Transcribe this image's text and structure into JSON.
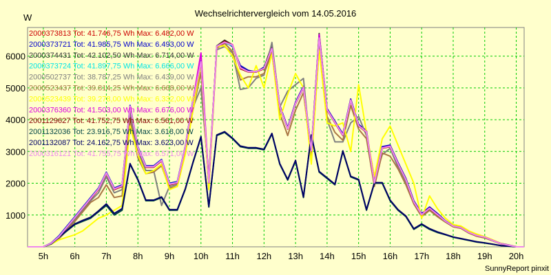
{
  "chart_data": {
    "type": "line",
    "title": "Wechselrichtervergleich vom 14.05.2016",
    "ylabel": "W",
    "credit": "SunnyReport pinxit",
    "xlim": [
      4.5,
      20.25
    ],
    "ylim": [
      0,
      6900
    ],
    "x_ticks": [
      {
        "value": 5,
        "label": "5h"
      },
      {
        "value": 6,
        "label": "6h"
      },
      {
        "value": 7,
        "label": "7h"
      },
      {
        "value": 8,
        "label": "8h"
      },
      {
        "value": 9,
        "label": "9h"
      },
      {
        "value": 10,
        "label": "10h"
      },
      {
        "value": 11,
        "label": "11h"
      },
      {
        "value": 12,
        "label": "12h"
      },
      {
        "value": 13,
        "label": "13h"
      },
      {
        "value": 14,
        "label": "14h"
      },
      {
        "value": 15,
        "label": "15h"
      },
      {
        "value": 16,
        "label": "16h"
      },
      {
        "value": 17,
        "label": "17h"
      },
      {
        "value": 18,
        "label": "18h"
      },
      {
        "value": 19,
        "label": "19h"
      },
      {
        "value": 20,
        "label": "20h"
      }
    ],
    "y_ticks": [
      {
        "value": 1000,
        "label": "1000"
      },
      {
        "value": 2000,
        "label": "2000"
      },
      {
        "value": 3000,
        "label": "3000"
      },
      {
        "value": 4000,
        "label": "4000"
      },
      {
        "value": 5000,
        "label": "5000"
      },
      {
        "value": 6000,
        "label": "6000"
      }
    ],
    "grid": true,
    "legend_position": "top-left",
    "x": [
      4.5,
      4.75,
      5.0,
      5.25,
      5.5,
      5.75,
      6.0,
      6.25,
      6.5,
      6.75,
      7.0,
      7.25,
      7.5,
      7.75,
      8.0,
      8.25,
      8.5,
      8.75,
      9.0,
      9.25,
      9.5,
      9.75,
      10.0,
      10.25,
      10.5,
      10.75,
      11.0,
      11.25,
      11.5,
      11.75,
      12.0,
      12.25,
      12.5,
      12.75,
      13.0,
      13.25,
      13.5,
      13.75,
      14.0,
      14.25,
      14.5,
      14.75,
      15.0,
      15.25,
      15.5,
      15.75,
      16.0,
      16.25,
      16.5,
      16.75,
      17.0,
      17.25,
      17.5,
      17.75,
      18.0,
      18.25,
      18.5,
      18.75,
      19.0,
      19.25,
      19.5,
      19.75,
      20.0,
      20.25
    ],
    "series": [
      {
        "name": "2000373813 Tot: 41.746,75 Wh Max: 6.482,00 W",
        "color": "#cc0000",
        "values": [
          0,
          0,
          0,
          100,
          300,
          600,
          900,
          1200,
          1500,
          1800,
          2300,
          1800,
          1900,
          4400,
          3100,
          2500,
          2500,
          2700,
          1950,
          2000,
          3100,
          4600,
          5800,
          2000,
          6300,
          6400,
          6350,
          5600,
          5500,
          5500,
          5600,
          6200,
          4400,
          3700,
          4500,
          5000,
          3000,
          6600,
          4300,
          3900,
          3500,
          4600,
          3800,
          3600,
          2000,
          3100,
          3150,
          2600,
          2100,
          1400,
          1000,
          1200,
          1000,
          800,
          650,
          600,
          450,
          350,
          300,
          200,
          100,
          50,
          0,
          0
        ]
      },
      {
        "name": "2000373721 Tot: 41.985,75 Wh Max: 6.493,00 W",
        "color": "#0000cc",
        "values": [
          0,
          0,
          0,
          120,
          350,
          650,
          950,
          1250,
          1550,
          1850,
          2350,
          1850,
          1950,
          4450,
          3150,
          2550,
          2550,
          2750,
          2000,
          2050,
          3150,
          4650,
          5850,
          2050,
          6300,
          6450,
          6300,
          5700,
          5550,
          5500,
          5650,
          6250,
          4450,
          3750,
          4550,
          5050,
          3050,
          6650,
          4350,
          3950,
          3550,
          4650,
          3850,
          3650,
          2050,
          3150,
          3200,
          2650,
          2150,
          1450,
          1050,
          1250,
          1050,
          820,
          660,
          610,
          460,
          360,
          310,
          210,
          110,
          60,
          0,
          0
        ]
      },
      {
        "name": "2000374431 Tot: 42.102,50 Wh Max: 6.714,00 W",
        "color": "#333333",
        "values": [
          0,
          0,
          0,
          110,
          320,
          620,
          920,
          1220,
          1520,
          1820,
          2320,
          1820,
          1920,
          4420,
          3120,
          2520,
          2520,
          2720,
          1970,
          2020,
          3120,
          4620,
          5820,
          2020,
          6320,
          6500,
          6350,
          5650,
          5520,
          5520,
          5620,
          6350,
          4420,
          3720,
          4520,
          5020,
          3020,
          6710,
          4320,
          3920,
          3520,
          4620,
          3820,
          3620,
          2020,
          3120,
          3170,
          2620,
          2120,
          1420,
          1020,
          1220,
          1020,
          810,
          655,
          605,
          455,
          355,
          305,
          205,
          105,
          55,
          0,
          0
        ]
      },
      {
        "name": "2000373724 Tot: 41.897,75 Wh Max: 6.666,00 W",
        "color": "#00e5e5",
        "values": [
          0,
          0,
          0,
          115,
          330,
          630,
          930,
          1230,
          1530,
          1830,
          2330,
          1830,
          1930,
          4430,
          3130,
          2530,
          2530,
          2730,
          1980,
          2030,
          3130,
          4630,
          5830,
          2030,
          6310,
          6420,
          6330,
          5620,
          5510,
          5510,
          5610,
          6220,
          4410,
          3710,
          4510,
          5010,
          3010,
          6660,
          4310,
          3910,
          3510,
          4610,
          3810,
          3610,
          2010,
          3110,
          3160,
          2610,
          2110,
          1410,
          1010,
          1210,
          1010,
          805,
          652,
          602,
          452,
          352,
          302,
          202,
          102,
          52,
          0,
          0
        ]
      },
      {
        "name": "2000502737 Tot: 38.787,25 Wh Max: 6.439,00 W",
        "color": "#7f7f7f",
        "values": [
          0,
          0,
          0,
          100,
          280,
          560,
          860,
          1150,
          1450,
          1700,
          2200,
          1700,
          1800,
          4200,
          3000,
          2400,
          2400,
          1300,
          1900,
          1950,
          3000,
          4400,
          5000,
          2200,
          6200,
          6300,
          6100,
          4950,
          5000,
          5300,
          5400,
          6430,
          4400,
          4900,
          5100,
          5300,
          2800,
          6400,
          4000,
          3300,
          3300,
          3900,
          4100,
          3500,
          2100,
          2900,
          3100,
          2500,
          2000,
          1400,
          950,
          1150,
          950,
          780,
          630,
          580,
          430,
          330,
          280,
          190,
          95,
          45,
          0,
          0
        ]
      },
      {
        "name": "2000523437 Tot: 39.814,25 Wh Max: 6.668,00 W",
        "color": "#aa7744",
        "values": [
          0,
          0,
          0,
          90,
          260,
          520,
          800,
          1100,
          1400,
          1550,
          1950,
          1550,
          1600,
          4000,
          2800,
          2300,
          2350,
          2550,
          1850,
          1900,
          2950,
          4300,
          5500,
          1900,
          6250,
          6400,
          6150,
          5250,
          5350,
          5350,
          5450,
          6100,
          4200,
          3500,
          4300,
          4850,
          2850,
          6600,
          4100,
          3600,
          3350,
          4450,
          3700,
          3400,
          1900,
          2950,
          2850,
          2450,
          1950,
          1350,
          950,
          1150,
          950,
          780,
          630,
          580,
          430,
          330,
          280,
          190,
          95,
          45,
          0,
          0
        ]
      },
      {
        "name": "2000523439 Tot: 39.278,00 Wh Max: 6.332,00 W",
        "color": "#ffff00",
        "values": [
          0,
          0,
          0,
          80,
          220,
          300,
          380,
          500,
          700,
          900,
          1000,
          1150,
          1300,
          3800,
          2900,
          2300,
          2400,
          2600,
          1800,
          1900,
          2900,
          4300,
          5800,
          1800,
          6300,
          6330,
          6000,
          5400,
          5000,
          5700,
          5000,
          6100,
          4000,
          4800,
          5450,
          5000,
          2600,
          6200,
          3900,
          3800,
          3900,
          3000,
          5100,
          3600,
          2200,
          3400,
          3800,
          3200,
          2600,
          2000,
          900,
          1600,
          1200,
          900,
          700,
          650,
          500,
          400,
          320,
          220,
          110,
          55,
          0,
          0
        ]
      },
      {
        "name": "2000376360 Tot: 41.503,00 Wh Max: 6.676,00 W",
        "color": "#dd00dd",
        "values": [
          0,
          0,
          0,
          112,
          325,
          625,
          925,
          1225,
          1525,
          1825,
          2325,
          1825,
          1925,
          4425,
          3125,
          2525,
          2525,
          2725,
          1975,
          2025,
          3125,
          4625,
          6100,
          2025,
          6305,
          6430,
          6360,
          5640,
          5510,
          5510,
          5610,
          6240,
          4420,
          3720,
          4520,
          5020,
          3020,
          6676,
          4320,
          3920,
          3520,
          4620,
          3820,
          3620,
          2020,
          3120,
          3170,
          2620,
          2120,
          1420,
          1020,
          1220,
          1020,
          808,
          653,
          603,
          453,
          353,
          303,
          203,
          103,
          53,
          0,
          0
        ]
      },
      {
        "name": "2001129627 Tot: 41.752,75 Wh Max: 6.561,00 W",
        "color": "#880000",
        "values": [
          0,
          0,
          0,
          105,
          310,
          610,
          910,
          1210,
          1510,
          1810,
          2310,
          1810,
          1910,
          4410,
          3110,
          2510,
          2510,
          2710,
          1960,
          2010,
          3110,
          4610,
          5810,
          2010,
          6300,
          6470,
          6340,
          5610,
          5505,
          5505,
          5605,
          6210,
          4405,
          3705,
          4505,
          5005,
          3005,
          6561,
          4305,
          3905,
          3505,
          4605,
          3805,
          3605,
          2005,
          3105,
          3155,
          2605,
          2105,
          1405,
          1005,
          1205,
          1005,
          803,
          651,
          601,
          451,
          351,
          301,
          201,
          101,
          51,
          0,
          0
        ]
      },
      {
        "name": "2001132036 Tot: 23.916,75 Wh Max: 3.618,00 W",
        "color": "#004444",
        "values": [
          0,
          0,
          0,
          90,
          300,
          500,
          700,
          800,
          900,
          1100,
          1300,
          1000,
          1150,
          2600,
          2100,
          1450,
          1450,
          1550,
          1150,
          1150,
          1800,
          2650,
          3450,
          1250,
          3500,
          3600,
          3400,
          3150,
          3100,
          3100,
          3050,
          3550,
          2600,
          2100,
          2700,
          1550,
          3500,
          2350,
          2150,
          1950,
          3000,
          2200,
          2100,
          1150,
          2000,
          2000,
          1450,
          1150,
          950,
          550,
          700,
          550,
          450,
          380,
          300,
          250,
          200,
          150,
          120,
          80,
          40,
          20,
          0,
          0
        ]
      },
      {
        "name": "2001132087 Tot: 24.162,75 Wh Max: 3.623,00 W",
        "color": "#000066",
        "values": [
          0,
          0,
          0,
          95,
          310,
          520,
          720,
          830,
          930,
          1130,
          1350,
          1050,
          1200,
          2620,
          2120,
          1470,
          1470,
          1570,
          1170,
          1170,
          1820,
          2670,
          3470,
          1270,
          3520,
          3623,
          3420,
          3170,
          3120,
          3120,
          3070,
          3570,
          2620,
          2120,
          2720,
          1570,
          3520,
          2370,
          2170,
          1970,
          3020,
          2220,
          2120,
          1170,
          2020,
          2020,
          1470,
          1170,
          970,
          570,
          720,
          570,
          470,
          390,
          310,
          260,
          210,
          160,
          125,
          85,
          42,
          22,
          0,
          0
        ]
      },
      {
        "name": "2000316121 Tot: 41.755,75 Wh Max: 6.571,00 W",
        "color": "#ee88ee",
        "values": [
          0,
          0,
          0,
          108,
          318,
          618,
          918,
          1218,
          1518,
          1818,
          2318,
          1818,
          1918,
          4418,
          3118,
          2518,
          2518,
          2718,
          1968,
          2018,
          3118,
          4618,
          5818,
          2018,
          6308,
          6440,
          6345,
          5630,
          5512,
          5512,
          5612,
          6230,
          4412,
          3712,
          4512,
          5012,
          3012,
          6571,
          4312,
          3912,
          3512,
          4612,
          3812,
          3612,
          2012,
          3112,
          3162,
          2612,
          2112,
          1412,
          1012,
          1212,
          1012,
          806,
          652,
          602,
          452,
          352,
          302,
          202,
          102,
          52,
          0,
          0
        ]
      }
    ]
  }
}
